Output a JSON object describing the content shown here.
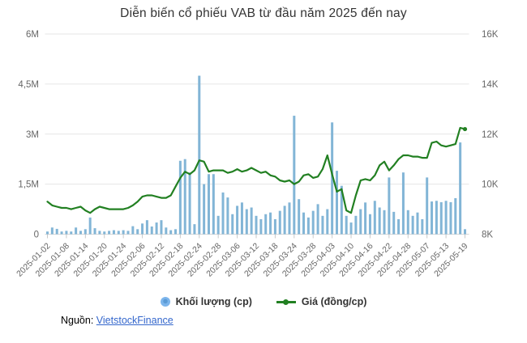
{
  "title": "Diễn biến cổ phiếu VAB từ đầu năm 2025 đến nay",
  "legend": {
    "items": [
      {
        "label": "Khối lượng (cp)",
        "marker": "circle",
        "color": "#7cb5ec"
      },
      {
        "label": "Giá (đồng/cp)",
        "marker": "line-dot",
        "color": "#228022"
      }
    ]
  },
  "source": {
    "prefix": "Nguồn: ",
    "link_text": "VietstockFinance"
  },
  "colors": {
    "bar": "#82b5d6",
    "line": "#228022",
    "gridline": "#e6e6e6",
    "axis_line": "#d6d6d6",
    "tick": "#c9c9c9",
    "axis_text": "#666666",
    "title_text": "#333333",
    "link": "#3366cc"
  },
  "chart_data": {
    "type": "bar",
    "subtype": "combo-bar-line-dual-axis",
    "title": "Diễn biến cổ phiếu VAB từ đầu năm 2025 đến nay",
    "xlabel": "",
    "ylabel_left": "Khối lượng (cp)",
    "ylabel_right": "Giá (đồng/cp)",
    "legend_position": "bottom-center",
    "grid": "horizontal-only",
    "x_tick_every": 4,
    "x_tick_rotation_deg": -45,
    "left_axis": {
      "range_shares": [
        0,
        6000000
      ],
      "tick_labels_bottom_up": [
        "0",
        "1,5M",
        "3M",
        "4,5M",
        "6M"
      ]
    },
    "right_axis": {
      "range_dong": [
        8000,
        16000
      ],
      "tick_labels_bottom_up": [
        "8K",
        "10K",
        "12K",
        "14K",
        "16K"
      ]
    },
    "x": [
      "2025-01-02",
      "2025-01-03",
      "2025-01-06",
      "2025-01-07",
      "2025-01-08",
      "2025-01-09",
      "2025-01-10",
      "2025-01-13",
      "2025-01-14",
      "2025-01-15",
      "2025-01-16",
      "2025-01-17",
      "2025-01-20",
      "2025-01-21",
      "2025-01-22",
      "2025-01-23",
      "2025-01-24",
      "2025-02-03",
      "2025-02-04",
      "2025-02-05",
      "2025-02-06",
      "2025-02-07",
      "2025-02-10",
      "2025-02-11",
      "2025-02-12",
      "2025-02-13",
      "2025-02-14",
      "2025-02-17",
      "2025-02-18",
      "2025-02-19",
      "2025-02-20",
      "2025-02-21",
      "2025-02-24",
      "2025-02-25",
      "2025-02-26",
      "2025-02-27",
      "2025-02-28",
      "2025-03-03",
      "2025-03-04",
      "2025-03-05",
      "2025-03-06",
      "2025-03-07",
      "2025-03-10",
      "2025-03-11",
      "2025-03-12",
      "2025-03-13",
      "2025-03-14",
      "2025-03-17",
      "2025-03-18",
      "2025-03-19",
      "2025-03-20",
      "2025-03-21",
      "2025-03-24",
      "2025-03-25",
      "2025-03-26",
      "2025-03-27",
      "2025-03-28",
      "2025-03-31",
      "2025-04-01",
      "2025-04-02",
      "2025-04-03",
      "2025-04-04",
      "2025-04-08",
      "2025-04-09",
      "2025-04-10",
      "2025-04-11",
      "2025-04-14",
      "2025-04-15",
      "2025-04-16",
      "2025-04-17",
      "2025-04-18",
      "2025-04-21",
      "2025-04-22",
      "2025-04-23",
      "2025-04-24",
      "2025-04-25",
      "2025-04-28",
      "2025-04-29",
      "2025-05-05",
      "2025-05-06",
      "2025-05-07",
      "2025-05-08",
      "2025-05-09",
      "2025-05-12",
      "2025-05-13",
      "2025-05-14",
      "2025-05-15",
      "2025-05-16",
      "2025-05-19"
    ],
    "series": [
      {
        "name": "Khối lượng (cp)",
        "type": "bar",
        "axis": "left",
        "unit": "million shares",
        "values": [
          0.08,
          0.2,
          0.16,
          0.08,
          0.1,
          0.08,
          0.2,
          0.1,
          0.15,
          0.5,
          0.18,
          0.1,
          0.08,
          0.1,
          0.12,
          0.1,
          0.12,
          0.1,
          0.24,
          0.15,
          0.32,
          0.42,
          0.23,
          0.35,
          0.42,
          0.2,
          0.12,
          0.15,
          2.2,
          2.25,
          1.85,
          0.3,
          4.75,
          1.5,
          1.8,
          1.8,
          0.55,
          1.25,
          1.1,
          0.6,
          0.85,
          0.95,
          0.75,
          0.8,
          0.55,
          0.45,
          0.6,
          0.65,
          0.45,
          0.7,
          0.85,
          0.95,
          3.55,
          1.05,
          0.65,
          0.5,
          0.7,
          0.9,
          0.55,
          0.75,
          3.35,
          1.9,
          1.45,
          0.55,
          0.35,
          0.55,
          0.75,
          0.95,
          0.6,
          1.0,
          0.8,
          0.72,
          1.7,
          0.67,
          0.45,
          1.85,
          0.72,
          0.55,
          0.65,
          0.45,
          1.7,
          0.98,
          1.0,
          0.96,
          1.0,
          0.96,
          1.08,
          2.75,
          0.15
        ]
      },
      {
        "name": "Giá (đồng/cp)",
        "type": "line",
        "axis": "right",
        "unit": "thousand dong per share",
        "values": [
          9.3,
          9.15,
          9.1,
          9.05,
          9.05,
          9.0,
          9.05,
          9.1,
          8.95,
          8.85,
          9.0,
          9.1,
          9.05,
          9.0,
          9.0,
          9.0,
          9.0,
          9.05,
          9.15,
          9.3,
          9.5,
          9.55,
          9.55,
          9.5,
          9.45,
          9.45,
          9.55,
          9.9,
          10.25,
          10.5,
          10.4,
          10.55,
          10.95,
          10.9,
          10.5,
          10.55,
          10.55,
          10.55,
          10.45,
          10.5,
          10.6,
          10.5,
          10.55,
          10.65,
          10.55,
          10.45,
          10.5,
          10.35,
          10.3,
          10.15,
          10.1,
          10.15,
          10.0,
          10.1,
          10.35,
          10.4,
          10.25,
          10.3,
          10.6,
          11.15,
          10.4,
          9.7,
          9.8,
          8.95,
          8.85,
          9.55,
          10.15,
          10.2,
          10.15,
          10.35,
          10.75,
          10.9,
          10.55,
          10.75,
          11.0,
          11.15,
          11.15,
          11.1,
          11.1,
          11.05,
          11.05,
          11.65,
          11.7,
          11.55,
          11.5,
          11.55,
          11.6,
          12.25,
          12.2
        ]
      }
    ]
  }
}
